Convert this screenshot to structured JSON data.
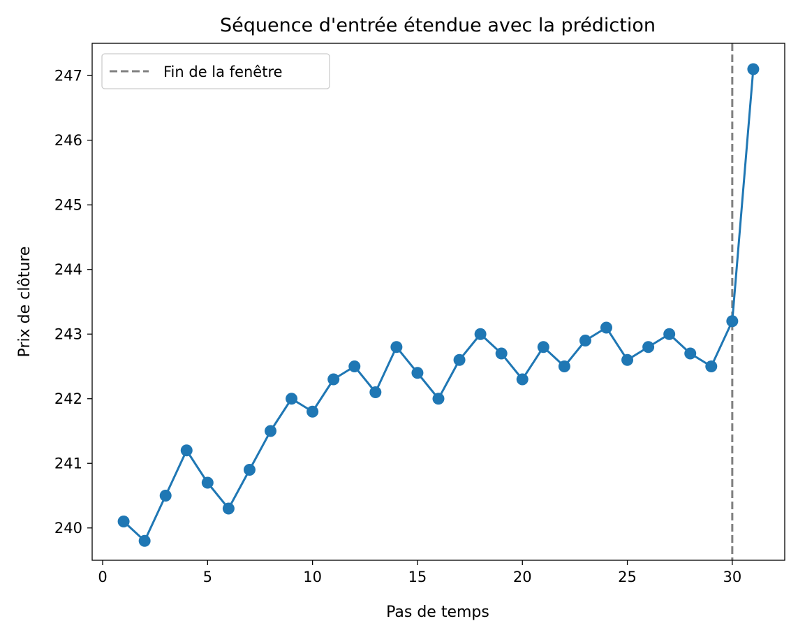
{
  "chart_data": {
    "type": "line",
    "title": "Séquence d'entrée étendue avec la prédiction",
    "xlabel": "Pas de temps",
    "ylabel": "Prix de clôture",
    "xlim": [
      -0.5,
      32.5
    ],
    "ylim": [
      239.5,
      247.5
    ],
    "xticks": [
      0,
      5,
      10,
      15,
      20,
      25,
      30
    ],
    "yticks": [
      240,
      241,
      242,
      243,
      244,
      245,
      246,
      247
    ],
    "grid": false,
    "legend_position": "top-left",
    "series": [
      {
        "color": "#1f77b4",
        "marker": "circle",
        "x": [
          1,
          2,
          3,
          4,
          5,
          6,
          7,
          8,
          9,
          10,
          11,
          12,
          13,
          14,
          15,
          16,
          17,
          18,
          19,
          20,
          21,
          22,
          23,
          24,
          25,
          26,
          27,
          28,
          29,
          30,
          31
        ],
        "y": [
          240.1,
          239.8,
          240.5,
          241.2,
          240.7,
          240.3,
          240.9,
          241.5,
          242.0,
          241.8,
          242.3,
          242.5,
          242.1,
          242.8,
          242.4,
          242.0,
          242.6,
          243.0,
          242.7,
          242.3,
          242.8,
          242.5,
          242.9,
          243.1,
          242.6,
          242.8,
          243.0,
          242.7,
          242.5,
          243.2,
          247.1
        ]
      }
    ],
    "vline": {
      "x": 30,
      "label": "Fin de la fenêtre",
      "color": "#808080",
      "style": "dashed"
    }
  }
}
